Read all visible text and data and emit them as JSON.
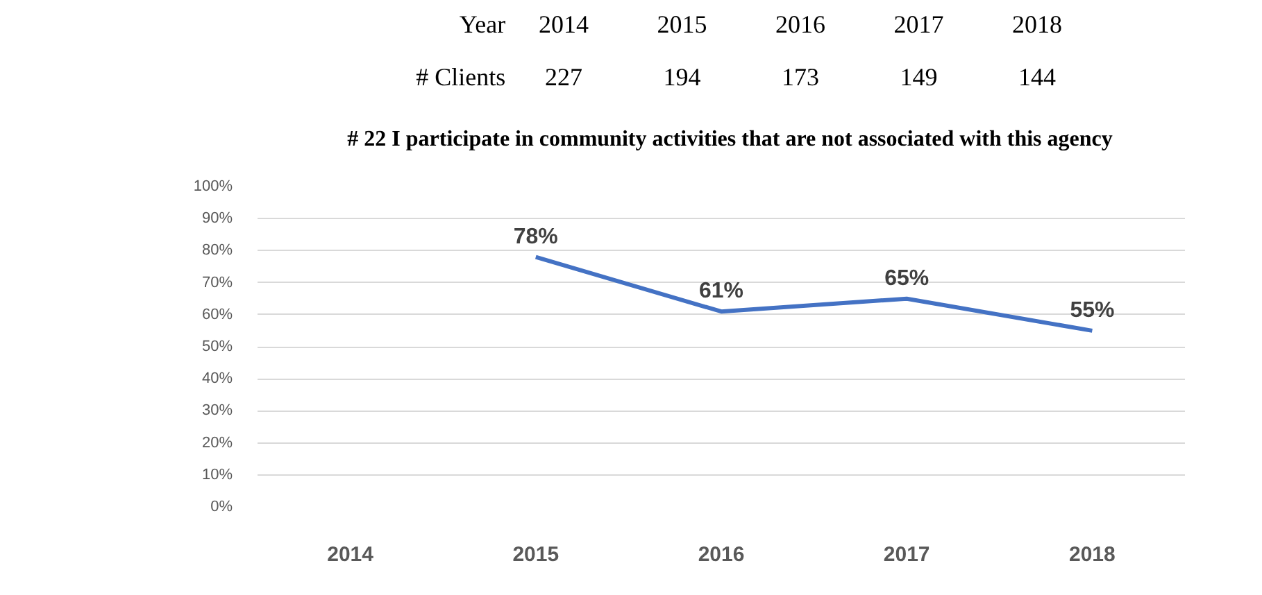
{
  "chart_data": {
    "type": "line",
    "title": "# 22 I participate in community activities that are not associated with this agency",
    "annotations": [
      "Year",
      "2014",
      "2015",
      "2016",
      "2017",
      "2018",
      "# Clients",
      "227",
      "194",
      "173",
      "149",
      "144"
    ],
    "categories": [
      "2014",
      "2015",
      "2016",
      "2017",
      "2018"
    ],
    "series": [
      {
        "color": "#4472c4",
        "values": [
          null,
          78,
          61,
          65,
          55
        ],
        "value_labels": [
          null,
          "78%",
          "61%",
          "65%",
          "55%"
        ]
      }
    ],
    "ylim": [
      0,
      100
    ],
    "yticks": [
      {
        "value": 0,
        "label": "0%"
      },
      {
        "value": 10,
        "label": "10%"
      },
      {
        "value": 20,
        "label": "20%"
      },
      {
        "value": 30,
        "label": "30%"
      },
      {
        "value": 40,
        "label": "40%"
      },
      {
        "value": 50,
        "label": "50%"
      },
      {
        "value": 60,
        "label": "60%"
      },
      {
        "value": 70,
        "label": "70%"
      },
      {
        "value": 80,
        "label": "80%"
      },
      {
        "value": 90,
        "label": "90%"
      },
      {
        "value": 100,
        "label": "100%"
      }
    ],
    "grid": "y",
    "marker": "none",
    "line_style": "solid"
  }
}
